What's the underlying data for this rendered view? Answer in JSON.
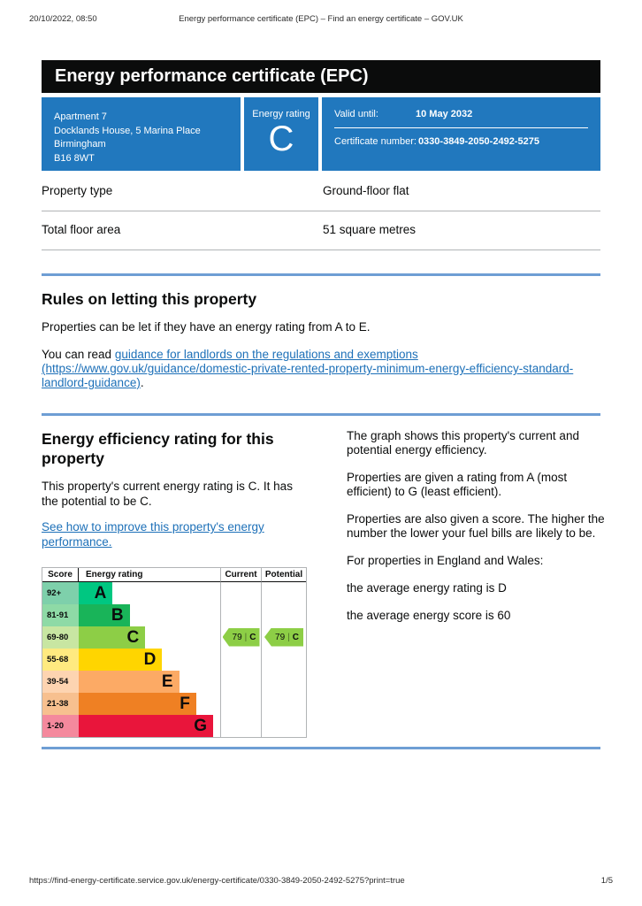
{
  "print_header": {
    "datetime": "20/10/2022, 08:50",
    "title": "Energy performance certificate (EPC) – Find an energy certificate – GOV.UK"
  },
  "print_footer": {
    "url": "https://find-energy-certificate.service.gov.uk/energy-certificate/0330-3849-2050-2492-5275?print=true",
    "page_indicator": "1/5"
  },
  "banner": {
    "title": "Energy performance certificate (EPC)"
  },
  "summary": {
    "address_lines": [
      "Apartment 7",
      "Docklands House, 5 Marina Place",
      "Birmingham",
      "B16 8WT"
    ],
    "energy_rating_label": "Energy rating",
    "energy_rating_value": "C",
    "valid_until_label": "Valid until:",
    "valid_until_value": "10 May 2032",
    "certificate_number_label": "Certificate number:",
    "certificate_number_value": "0330-3849-2050-2492-5275",
    "panel_color": "#2178be"
  },
  "property_table": {
    "rows": [
      {
        "label": "Property type",
        "value": "Ground-floor flat"
      },
      {
        "label": "Total floor area",
        "value": "51 square metres"
      }
    ]
  },
  "rules_section": {
    "heading": "Rules on letting this property",
    "paragraph1": "Properties can be let if they have an energy rating from A to E.",
    "paragraph2_prefix": "You can read ",
    "link_text": "guidance for landlords on the regulations and exemptions (https://www.gov.uk/guidance/domestic-private-rented-property-minimum-energy-efficiency-standard-landlord-guidance)",
    "paragraph2_suffix": "."
  },
  "rating_section": {
    "heading": "Energy efficiency rating for this property",
    "paragraph1": "This property's current energy rating is C. It has the potential to be C.",
    "improve_link_text": "See how to improve this property's energy performance.",
    "right_paragraphs": [
      "The graph shows this property's current and potential energy efficiency.",
      "Properties are given a rating from A (most efficient) to G (least efficient).",
      "Properties are also given a score. The higher the number the lower your fuel bills are likely to be.",
      "For properties in England and Wales:"
    ],
    "average_lines": [
      "the average energy rating is D",
      "the average energy score is 60"
    ]
  },
  "chart_data": {
    "type": "bar",
    "title": "Energy efficiency rating chart",
    "headers": {
      "score": "Score",
      "rating": "Energy rating",
      "current": "Current",
      "potential": "Potential"
    },
    "bands": [
      {
        "letter": "A",
        "score_range": "92+",
        "color": "#00c781",
        "tint": "#7ed0ab",
        "width_pct": 24
      },
      {
        "letter": "B",
        "score_range": "81-91",
        "color": "#19b459",
        "tint": "#8edaa6",
        "width_pct": 36
      },
      {
        "letter": "C",
        "score_range": "69-80",
        "color": "#8dce46",
        "tint": "#c8e6a2",
        "width_pct": 47
      },
      {
        "letter": "D",
        "score_range": "55-68",
        "color": "#ffd500",
        "tint": "#ffea80",
        "width_pct": 59
      },
      {
        "letter": "E",
        "score_range": "39-54",
        "color": "#fcaa65",
        "tint": "#fdd4b1",
        "width_pct": 71
      },
      {
        "letter": "F",
        "score_range": "21-38",
        "color": "#ef8023",
        "tint": "#f7c08f",
        "width_pct": 83
      },
      {
        "letter": "G",
        "score_range": "1-20",
        "color": "#e9153b",
        "tint": "#f4899d",
        "width_pct": 95
      }
    ],
    "current": {
      "score": "79",
      "band": "C"
    },
    "potential": {
      "score": "79",
      "band": "C"
    },
    "arrow_color": "#8dce46",
    "arrow_separator": "|"
  }
}
